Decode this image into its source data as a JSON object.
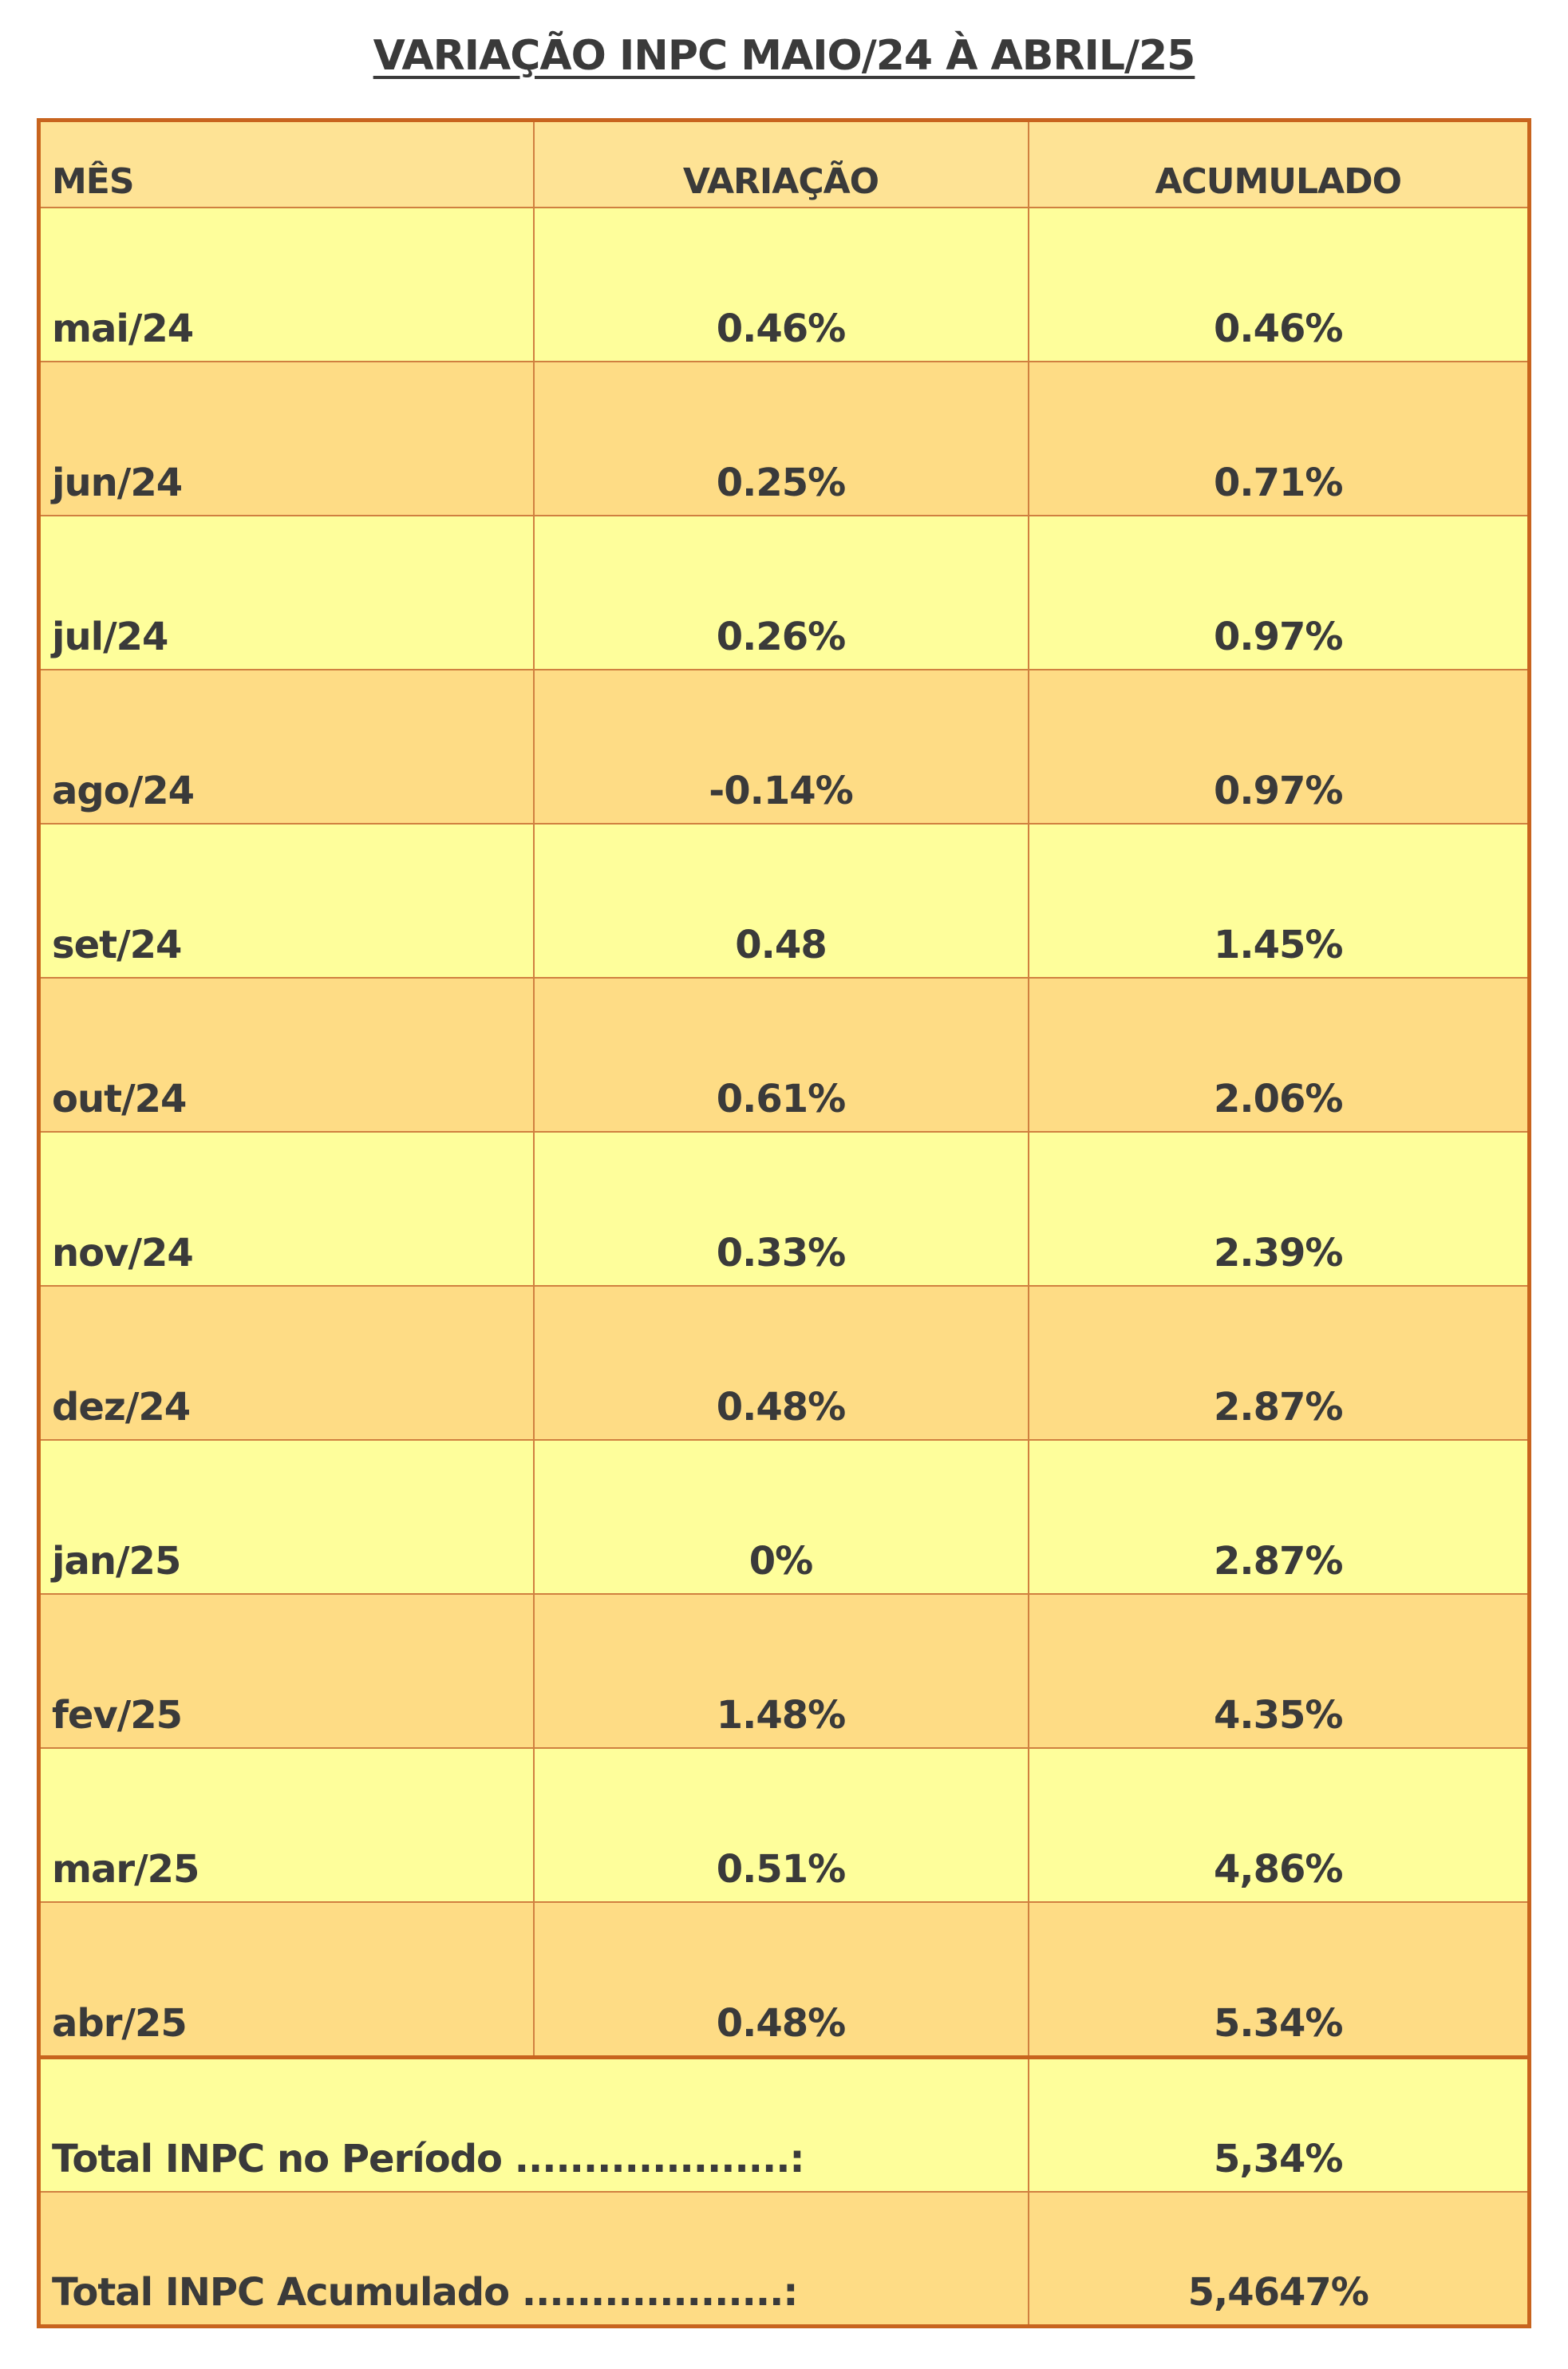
{
  "title": "VARIAÇÃO INPC MAIO/24 À ABRIL/25",
  "headers": {
    "month": "MÊS",
    "variation": "VARIAÇÃO",
    "accumulated": "ACUMULADO"
  },
  "rows": [
    {
      "month": "mai/24",
      "variation": "0.46%",
      "accumulated": "0.46%"
    },
    {
      "month": "jun/24",
      "variation": "0.25%",
      "accumulated": "0.71%"
    },
    {
      "month": "jul/24",
      "variation": "0.26%",
      "accumulated": "0.97%"
    },
    {
      "month": "ago/24",
      "variation": "-0.14%",
      "accumulated": "0.97%"
    },
    {
      "month": "set/24",
      "variation": "0.48",
      "accumulated": "1.45%"
    },
    {
      "month": "out/24",
      "variation": "0.61%",
      "accumulated": "2.06%"
    },
    {
      "month": "nov/24",
      "variation": "0.33%",
      "accumulated": "2.39%"
    },
    {
      "month": "dez/24",
      "variation": "0.48%",
      "accumulated": "2.87%"
    },
    {
      "month": "jan/25",
      "variation": "0%",
      "accumulated": "2.87%"
    },
    {
      "month": "fev/25",
      "variation": "1.48%",
      "accumulated": "4.35%"
    },
    {
      "month": "mar/25",
      "variation": "0.51%",
      "accumulated": "4,86%"
    },
    {
      "month": "abr/25",
      "variation": "0.48%",
      "accumulated": "5.34%"
    }
  ],
  "totals": [
    {
      "label": "Total INPC no Período ....................:",
      "value": "5,34%"
    },
    {
      "label": "Total INPC Acumulado ...................:",
      "value": "5,4647%"
    }
  ],
  "colors": {
    "border": "#c8641e",
    "header_bg": "#fee395",
    "row_light": "#fefe9b",
    "row_dark": "#fedc85",
    "text": "#3a3a3a"
  }
}
